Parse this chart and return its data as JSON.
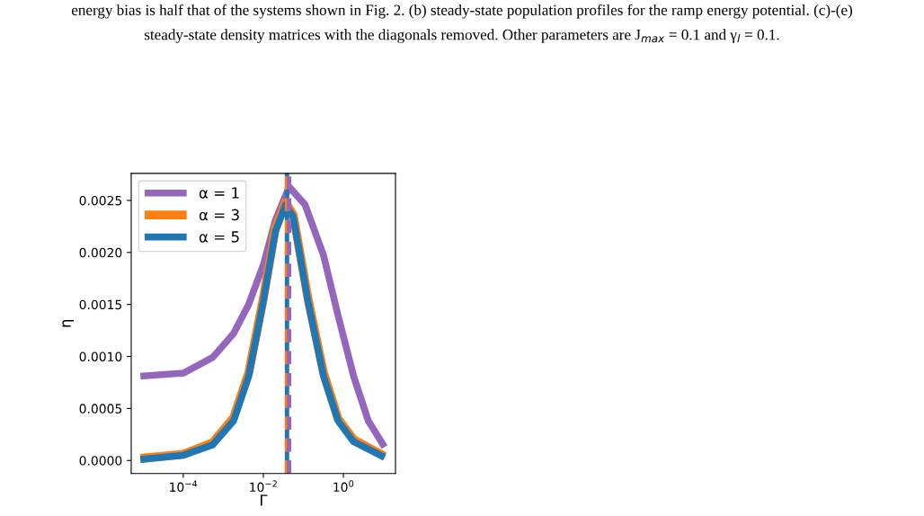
{
  "chart_data": {
    "type": "line",
    "annotations": [
      "energy bias is half that of the systems shown in Fig. 2. (b) steady-state population profiles for the ramp energy potential. (c)-(e)",
      "steady-state density matrices with the diagonals removed. Other parameters are J$_{max}$ = 0.1 and γ$_{l}$ = 0.1."
    ],
    "xlabel": "Γ",
    "ylabel": "η",
    "log": "x",
    "xlim": [
      5e-06,
      20
    ],
    "ylim": [
      -0.000125,
      0.00276
    ],
    "xticks": [
      {
        "value": 0.0001,
        "label": "10$^{−4}$"
      },
      {
        "value": 0.01,
        "label": "10$^{−2}$"
      },
      {
        "value": 1,
        "label": "10$^{0}$"
      }
    ],
    "yticks": [
      {
        "value": 0,
        "label": "0.0000"
      },
      {
        "value": 0.0005,
        "label": "0.0005"
      },
      {
        "value": 0.001,
        "label": "0.0010"
      },
      {
        "value": 0.0015,
        "label": "0.0015"
      },
      {
        "value": 0.002,
        "label": "0.0020"
      },
      {
        "value": 0.0025,
        "label": "0.0025"
      }
    ],
    "grid": false,
    "legend": "top left",
    "marker": "none",
    "line_style": "solid",
    "series": [
      {
        "name": "α = 1",
        "color": "#9467bd",
        "x": [
          8.5e-06,
          0.0001,
          0.00054,
          0.0018,
          0.0043,
          0.01,
          0.02,
          0.044,
          0.11,
          0.32,
          0.74,
          1.8,
          4.2,
          10.7
        ],
        "values": [
          0.00081,
          0.00084,
          0.00099,
          0.00122,
          0.0015,
          0.00188,
          0.00231,
          0.00263,
          0.00246,
          0.00197,
          0.00139,
          0.00081,
          0.00038,
          0.00013
        ]
      },
      {
        "name": "α = 3",
        "color": "#ff7f0e",
        "x": [
          8.5e-06,
          0.0001,
          0.00054,
          0.0018,
          0.0043,
          0.01,
          0.02,
          0.036,
          0.056,
          0.13,
          0.32,
          0.74,
          1.8,
          10.7
        ],
        "values": [
          2e-05,
          6e-05,
          0.00017,
          0.00041,
          0.00084,
          0.00156,
          0.00223,
          0.00248,
          0.00236,
          0.00156,
          0.00084,
          0.0004,
          0.0002,
          4e-05
        ]
      },
      {
        "name": "α = 5",
        "color": "#1f77b4",
        "x": [
          8.5e-06,
          0.0001,
          0.00054,
          0.0018,
          0.0043,
          0.01,
          0.02,
          0.036,
          0.056,
          0.13,
          0.32,
          0.74,
          1.8,
          10.7
        ],
        "values": [
          1e-05,
          5e-05,
          0.00015,
          0.00038,
          0.00081,
          0.00153,
          0.0022,
          0.00246,
          0.00234,
          0.00153,
          0.00081,
          0.00038,
          0.00018,
          3e-05
        ]
      }
    ],
    "ref_lines": [
      {
        "axis": "x",
        "value": 0.039,
        "color": "#1f77b4",
        "line_style": "solid"
      },
      {
        "axis": "x",
        "value": 0.039,
        "color": "#ff7f0e",
        "line_style": "dashed"
      },
      {
        "axis": "x",
        "value": 0.044,
        "color": "#9467bd",
        "line_style": "dashed"
      }
    ]
  }
}
